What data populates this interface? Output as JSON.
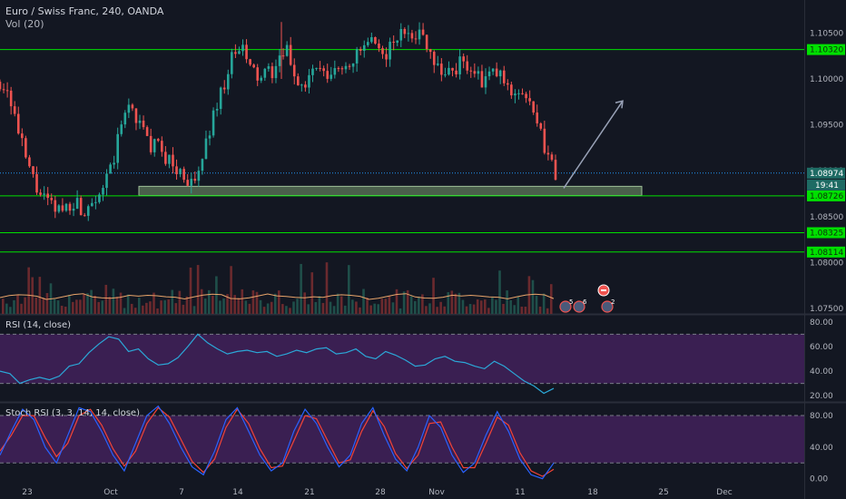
{
  "header": {
    "title": "Euro / Swiss Franc, 240, OANDA",
    "volume_label": "Vol (20)"
  },
  "price_badges": {
    "last_price": "1.08974",
    "countdown": "19:41"
  },
  "rsi_panel": {
    "title": "RSI (14, close)"
  },
  "stoch_panel": {
    "title": "Stoch RSI (3, 3, 14, 14, close)"
  },
  "event_markers": [
    "5",
    "6",
    "2"
  ],
  "colors": {
    "background": "#131722",
    "up_candle": "#26a69a",
    "down_candle": "#ef5350",
    "level_line": "#00e000",
    "rsi_line": "#2ba8d8",
    "rsi_band": "#3a1f52",
    "stoch_k": "#2962ff",
    "stoch_d": "#f44336",
    "axis_text": "#b2b5be",
    "last_price_line": "#2196f3",
    "support_zone": "#6f8f68",
    "projection_arrow": "#9aa3b8"
  },
  "chart_data": [
    {
      "type": "candlestick",
      "title": "Euro / Swiss Franc, 240, OANDA",
      "y_axis_ticks": [
        1.105,
        1.1,
        1.095,
        1.09,
        1.085,
        1.08,
        1.075
      ],
      "y_axis_tick_labels": [
        "1.10500",
        "1.10000",
        "1.09500",
        "1.09000",
        "1.08500",
        "1.08000",
        "1.07500"
      ],
      "ylim": [
        1.0744,
        1.1086
      ],
      "x_tick_labels": [
        "23",
        "Oct",
        "7",
        "14",
        "21",
        "28",
        "Nov",
        "11",
        "18",
        "25",
        "Dec"
      ],
      "horizontal_levels": [
        {
          "value": 1.1032,
          "label": "1.10320"
        },
        {
          "value": 1.08726,
          "label": "1.08726"
        },
        {
          "value": 1.08325,
          "label": "1.08325"
        },
        {
          "value": 1.08114,
          "label": "1.08114"
        }
      ],
      "last_price": 1.08974,
      "support_zone": {
        "from": 1.0873,
        "to": 1.0883
      },
      "projection_arrow": {
        "from": 1.0881,
        "to": 1.0976
      },
      "volume_series": "Vol (20)",
      "series": [
        {
          "name": "price",
          "approx_close_path": [
            1.0997,
            1.0985,
            1.094,
            1.0905,
            1.088,
            1.0865,
            1.0857,
            1.086,
            1.0868,
            1.0855,
            1.0872,
            1.088,
            1.09,
            1.0945,
            1.0975,
            1.0952,
            1.093,
            1.0925,
            1.0915,
            1.09,
            1.0895,
            1.088,
            1.092,
            1.096,
            1.099,
            1.102,
            1.1035,
            1.1012,
            1.1,
            1.1005,
            1.1015,
            1.103,
            1.1,
            1.099,
            1.1015,
            1.1,
            1.1005,
            1.1015,
            1.102,
            1.103,
            1.104,
            1.1025,
            1.1032,
            1.1045,
            1.1055,
            1.105,
            1.1042,
            1.102,
            1.1005,
            1.101,
            1.102,
            1.101,
            1.0995,
            1.1005,
            1.1005,
            1.0985,
            1.099,
            1.0975,
            1.095,
            1.092,
            1.0898
          ]
        }
      ]
    },
    {
      "type": "line",
      "title": "RSI (14, close)",
      "y_axis_tick_labels": [
        "80.00",
        "60.00",
        "40.00",
        "20.00"
      ],
      "ylim": [
        15,
        85
      ],
      "band": [
        30,
        70
      ],
      "series": [
        {
          "name": "RSI",
          "values": [
            40,
            38,
            30,
            33,
            35,
            33,
            36,
            44,
            46,
            55,
            62,
            68,
            66,
            56,
            58,
            50,
            45,
            46,
            51,
            60,
            70,
            63,
            58,
            54,
            56,
            57,
            55,
            56,
            52,
            54,
            57,
            55,
            58,
            59,
            54,
            55,
            58,
            52,
            50,
            56,
            53,
            49,
            44,
            45,
            50,
            52,
            48,
            47,
            44,
            42,
            48,
            44,
            38,
            32,
            28,
            22,
            26
          ]
        }
      ]
    },
    {
      "type": "line",
      "title": "Stoch RSI (3, 3, 14, 14, close)",
      "y_axis_tick_labels": [
        "80.00",
        "40.00",
        "0.00"
      ],
      "ylim": [
        -5,
        95
      ],
      "band": [
        20,
        80
      ],
      "series": [
        {
          "name": "K",
          "values": [
            30,
            60,
            88,
            75,
            40,
            20,
            55,
            90,
            85,
            60,
            30,
            10,
            45,
            80,
            92,
            70,
            40,
            15,
            5,
            35,
            75,
            90,
            60,
            30,
            10,
            20,
            60,
            88,
            70,
            40,
            15,
            30,
            70,
            90,
            55,
            25,
            10,
            40,
            80,
            65,
            30,
            8,
            20,
            55,
            85,
            60,
            25,
            5,
            0,
            20
          ]
        },
        {
          "name": "D",
          "values": [
            35,
            55,
            80,
            80,
            52,
            28,
            45,
            80,
            88,
            68,
            38,
            16,
            35,
            70,
            90,
            78,
            50,
            22,
            8,
            25,
            65,
            88,
            70,
            38,
            14,
            16,
            48,
            80,
            76,
            48,
            20,
            24,
            60,
            86,
            66,
            32,
            13,
            30,
            70,
            72,
            40,
            14,
            14,
            45,
            78,
            68,
            33,
            10,
            3,
            12
          ]
        }
      ]
    }
  ]
}
